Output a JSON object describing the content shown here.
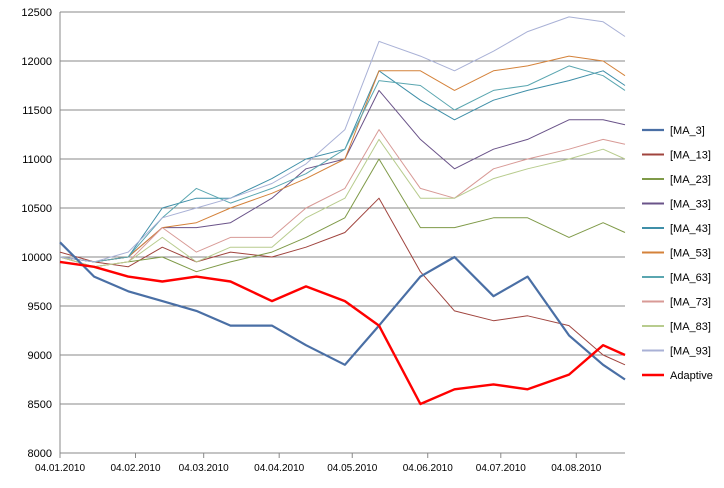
{
  "chart_data": {
    "type": "line",
    "title": "",
    "xlabel": "",
    "ylabel": "",
    "ylim": [
      8000,
      12500
    ],
    "yticks": [
      8000,
      8500,
      9000,
      9500,
      10000,
      10500,
      11000,
      11500,
      12000,
      12500
    ],
    "ytick_labels": [
      "8000",
      "8500",
      "9000",
      "9500",
      "10000",
      "10500",
      "11000",
      "11500",
      "12000",
      "12500"
    ],
    "xlim": [
      "2010-01-04",
      "2010-08-24"
    ],
    "xticks": [
      "2010-01-04",
      "2010-02-04",
      "2010-03-04",
      "2010-04-04",
      "2010-05-04",
      "2010-06-04",
      "2010-07-04",
      "2010-08-04"
    ],
    "xtick_labels": [
      "04.01.2010",
      "04.02.2010",
      "04.03.2010",
      "04.04.2010",
      "04.05.2010",
      "04.06.2010",
      "04.07.2010",
      "04.08.2010"
    ],
    "grid": "horizontal",
    "legend_position": "right",
    "series": [
      {
        "name": "[MA_3]",
        "color": "#4a6fa5",
        "width": 2.2,
        "x": [
          "2010-01-04",
          "2010-01-18",
          "2010-02-01",
          "2010-02-15",
          "2010-03-01",
          "2010-03-15",
          "2010-04-01",
          "2010-04-15",
          "2010-05-01",
          "2010-05-15",
          "2010-06-01",
          "2010-06-15",
          "2010-07-01",
          "2010-07-15",
          "2010-08-01",
          "2010-08-15",
          "2010-08-24"
        ],
        "y": [
          10150,
          9800,
          9650,
          9550,
          9450,
          9300,
          9300,
          9100,
          8900,
          9300,
          9800,
          10000,
          9600,
          9800,
          9200,
          8900,
          8750
        ]
      },
      {
        "name": "[MA_13]",
        "color": "#a0443e",
        "width": 1,
        "x": [
          "2010-01-04",
          "2010-01-18",
          "2010-02-01",
          "2010-02-15",
          "2010-03-01",
          "2010-03-15",
          "2010-04-01",
          "2010-04-15",
          "2010-05-01",
          "2010-05-15",
          "2010-06-01",
          "2010-06-15",
          "2010-07-01",
          "2010-07-15",
          "2010-08-01",
          "2010-08-15",
          "2010-08-24"
        ],
        "y": [
          10050,
          9950,
          9900,
          10100,
          9950,
          10050,
          10000,
          10100,
          10250,
          10600,
          9850,
          9450,
          9350,
          9400,
          9300,
          9000,
          8900
        ]
      },
      {
        "name": "[MA_23]",
        "color": "#7f9a48",
        "width": 1,
        "x": [
          "2010-01-04",
          "2010-01-18",
          "2010-02-01",
          "2010-02-15",
          "2010-03-01",
          "2010-03-15",
          "2010-04-01",
          "2010-04-15",
          "2010-05-01",
          "2010-05-15",
          "2010-06-01",
          "2010-06-15",
          "2010-07-01",
          "2010-07-15",
          "2010-08-01",
          "2010-08-15",
          "2010-08-24"
        ],
        "y": [
          10000,
          9900,
          9950,
          10000,
          9850,
          9950,
          10050,
          10200,
          10400,
          11000,
          10300,
          10300,
          10400,
          10400,
          10200,
          10350,
          10250
        ]
      },
      {
        "name": "[MA_33]",
        "color": "#6a5389",
        "width": 1,
        "x": [
          "2010-01-04",
          "2010-01-18",
          "2010-02-01",
          "2010-02-15",
          "2010-03-01",
          "2010-03-15",
          "2010-04-01",
          "2010-04-15",
          "2010-05-01",
          "2010-05-15",
          "2010-06-01",
          "2010-06-15",
          "2010-07-01",
          "2010-07-15",
          "2010-08-01",
          "2010-08-15",
          "2010-08-24"
        ],
        "y": [
          10000,
          9950,
          10000,
          10300,
          10300,
          10350,
          10600,
          10900,
          11000,
          11700,
          11200,
          10900,
          11100,
          11200,
          11400,
          11400,
          11350
        ]
      },
      {
        "name": "[MA_43]",
        "color": "#3f8fa8",
        "width": 1,
        "x": [
          "2010-01-04",
          "2010-01-18",
          "2010-02-01",
          "2010-02-15",
          "2010-03-01",
          "2010-03-15",
          "2010-04-01",
          "2010-04-15",
          "2010-05-01",
          "2010-05-15",
          "2010-06-01",
          "2010-06-15",
          "2010-07-01",
          "2010-07-15",
          "2010-08-01",
          "2010-08-15",
          "2010-08-24"
        ],
        "y": [
          10000,
          9950,
          10000,
          10500,
          10600,
          10600,
          10800,
          11000,
          11100,
          11900,
          11600,
          11400,
          11600,
          11700,
          11800,
          11900,
          11750
        ]
      },
      {
        "name": "[MA_53]",
        "color": "#d4823a",
        "width": 1,
        "x": [
          "2010-01-04",
          "2010-01-18",
          "2010-02-01",
          "2010-02-15",
          "2010-03-01",
          "2010-03-15",
          "2010-04-01",
          "2010-04-15",
          "2010-05-01",
          "2010-05-15",
          "2010-06-01",
          "2010-06-15",
          "2010-07-01",
          "2010-07-15",
          "2010-08-01",
          "2010-08-15",
          "2010-08-24"
        ],
        "y": [
          10000,
          9950,
          10000,
          10300,
          10350,
          10500,
          10650,
          10800,
          11000,
          11900,
          11900,
          11700,
          11900,
          11950,
          12050,
          12000,
          11850
        ]
      },
      {
        "name": "[MA_63]",
        "color": "#5aa6b0",
        "width": 1,
        "x": [
          "2010-01-04",
          "2010-01-18",
          "2010-02-01",
          "2010-02-15",
          "2010-03-01",
          "2010-03-15",
          "2010-04-01",
          "2010-04-15",
          "2010-05-01",
          "2010-05-15",
          "2010-06-01",
          "2010-06-15",
          "2010-07-01",
          "2010-07-15",
          "2010-08-01",
          "2010-08-15",
          "2010-08-24"
        ],
        "y": [
          10000,
          9950,
          10000,
          10400,
          10700,
          10550,
          10700,
          10850,
          11100,
          11800,
          11750,
          11500,
          11700,
          11750,
          11950,
          11850,
          11700
        ]
      },
      {
        "name": "[MA_73]",
        "color": "#d89a96",
        "width": 1,
        "x": [
          "2010-01-04",
          "2010-01-18",
          "2010-02-01",
          "2010-02-15",
          "2010-03-01",
          "2010-03-15",
          "2010-04-01",
          "2010-04-15",
          "2010-05-01",
          "2010-05-15",
          "2010-06-01",
          "2010-06-15",
          "2010-07-01",
          "2010-07-15",
          "2010-08-01",
          "2010-08-15",
          "2010-08-24"
        ],
        "y": [
          10000,
          9900,
          9950,
          10300,
          10050,
          10200,
          10200,
          10500,
          10700,
          11300,
          10700,
          10600,
          10900,
          11000,
          11100,
          11200,
          11150
        ]
      },
      {
        "name": "[MA_83]",
        "color": "#b8cc8e",
        "width": 1,
        "x": [
          "2010-01-04",
          "2010-01-18",
          "2010-02-01",
          "2010-02-15",
          "2010-03-01",
          "2010-03-15",
          "2010-04-01",
          "2010-04-15",
          "2010-05-01",
          "2010-05-15",
          "2010-06-01",
          "2010-06-15",
          "2010-07-01",
          "2010-07-15",
          "2010-08-01",
          "2010-08-15",
          "2010-08-24"
        ],
        "y": [
          10000,
          9900,
          9950,
          10200,
          9950,
          10100,
          10100,
          10400,
          10600,
          11200,
          10600,
          10600,
          10800,
          10900,
          11000,
          11100,
          11000
        ]
      },
      {
        "name": "[MA_93]",
        "color": "#a9b1d6",
        "width": 1,
        "x": [
          "2010-01-04",
          "2010-01-18",
          "2010-02-01",
          "2010-02-15",
          "2010-03-01",
          "2010-03-15",
          "2010-04-01",
          "2010-04-15",
          "2010-05-01",
          "2010-05-15",
          "2010-06-01",
          "2010-06-15",
          "2010-07-01",
          "2010-07-15",
          "2010-08-01",
          "2010-08-15",
          "2010-08-24"
        ],
        "y": [
          10000,
          9950,
          10050,
          10400,
          10500,
          10600,
          10750,
          10950,
          11300,
          12200,
          12050,
          11900,
          12100,
          12300,
          12450,
          12400,
          12250
        ]
      },
      {
        "name": "Adaptive",
        "color": "#ff0000",
        "width": 2.4,
        "x": [
          "2010-01-04",
          "2010-01-18",
          "2010-02-01",
          "2010-02-15",
          "2010-03-01",
          "2010-03-15",
          "2010-04-01",
          "2010-04-15",
          "2010-05-01",
          "2010-05-15",
          "2010-06-01",
          "2010-06-15",
          "2010-07-01",
          "2010-07-15",
          "2010-08-01",
          "2010-08-15",
          "2010-08-24"
        ],
        "y": [
          9950,
          9900,
          9800,
          9750,
          9800,
          9750,
          9550,
          9700,
          9550,
          9300,
          8500,
          8650,
          8700,
          8650,
          8800,
          9100,
          9000
        ]
      }
    ]
  }
}
